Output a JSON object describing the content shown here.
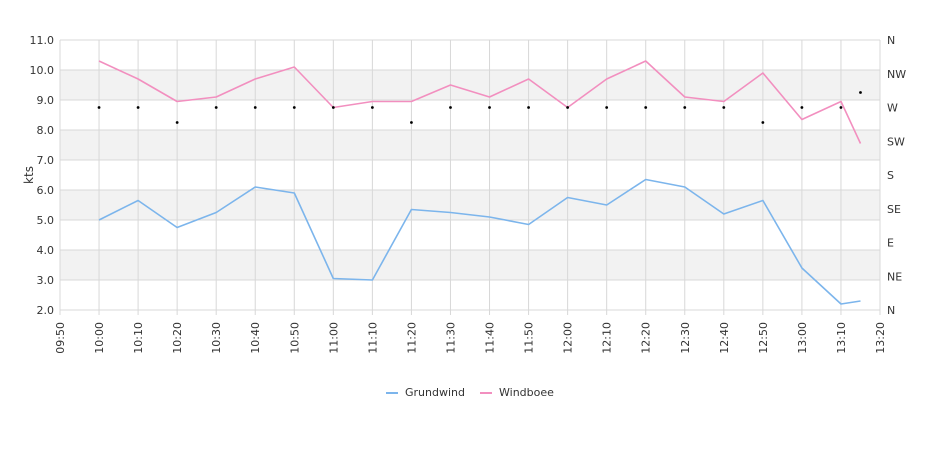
{
  "chart_data": {
    "type": "line",
    "ylabel": "kts",
    "ylim": [
      2.0,
      11.0
    ],
    "y_ticks": [
      "2.0",
      "3.0",
      "4.0",
      "5.0",
      "6.0",
      "7.0",
      "8.0",
      "9.0",
      "10.0",
      "11.0"
    ],
    "x_ticks": [
      "09:50",
      "10:00",
      "10:10",
      "10:20",
      "10:30",
      "10:40",
      "10:50",
      "11:00",
      "11:10",
      "11:20",
      "11:30",
      "11:40",
      "11:50",
      "12:00",
      "12:10",
      "12:20",
      "12:30",
      "12:40",
      "12:50",
      "13:00",
      "13:10",
      "13:20"
    ],
    "xlim": [
      "09:50",
      "13:20"
    ],
    "direction_axis": {
      "labels": [
        "N",
        "NE",
        "E",
        "SE",
        "S",
        "SW",
        "W",
        "NW",
        "N"
      ],
      "range_deg": [
        0,
        360
      ]
    },
    "grid": true,
    "banded_background": true,
    "legend_position": "bottom-center",
    "colors": {
      "grundwind": "#7cb5ec",
      "windboee": "#f28fbf",
      "direction": "#000000",
      "grid": "#d8d8d8",
      "band": "#f2f2f2"
    },
    "series": [
      {
        "name": "Grundwind",
        "x": [
          "10:00",
          "10:10",
          "10:20",
          "10:30",
          "10:40",
          "10:50",
          "11:00",
          "11:10",
          "11:20",
          "11:30",
          "11:40",
          "11:50",
          "12:00",
          "12:10",
          "12:20",
          "12:30",
          "12:40",
          "12:50",
          "13:00",
          "13:10",
          "13:15"
        ],
        "values": [
          5.0,
          5.65,
          4.75,
          5.25,
          6.1,
          5.9,
          3.05,
          3.0,
          5.35,
          5.25,
          5.1,
          4.85,
          5.75,
          5.5,
          6.35,
          6.1,
          5.2,
          5.65,
          3.4,
          2.2,
          2.3
        ]
      },
      {
        "name": "Windboee",
        "x": [
          "10:00",
          "10:10",
          "10:20",
          "10:30",
          "10:40",
          "10:50",
          "11:00",
          "11:10",
          "11:20",
          "11:30",
          "11:40",
          "11:50",
          "12:00",
          "12:10",
          "12:20",
          "12:30",
          "12:40",
          "12:50",
          "13:00",
          "13:10",
          "13:15"
        ],
        "values": [
          10.3,
          9.7,
          8.95,
          9.1,
          9.7,
          10.1,
          8.75,
          8.95,
          8.95,
          9.5,
          9.1,
          9.7,
          8.75,
          9.7,
          10.3,
          9.1,
          8.95,
          9.9,
          8.35,
          8.95,
          7.55
        ]
      }
    ],
    "direction_points": {
      "x": [
        "10:00",
        "10:10",
        "10:20",
        "10:30",
        "10:40",
        "10:50",
        "11:00",
        "11:10",
        "11:20",
        "11:30",
        "11:40",
        "11:50",
        "12:00",
        "12:10",
        "12:20",
        "12:30",
        "12:40",
        "12:50",
        "13:00",
        "13:10",
        "13:15"
      ],
      "degrees": [
        270,
        270,
        250,
        270,
        270,
        270,
        270,
        270,
        250,
        270,
        270,
        270,
        270,
        270,
        270,
        270,
        270,
        250,
        270,
        270,
        290
      ]
    }
  },
  "legend": {
    "grundwind": "Grundwind",
    "windboee": "Windboee"
  }
}
